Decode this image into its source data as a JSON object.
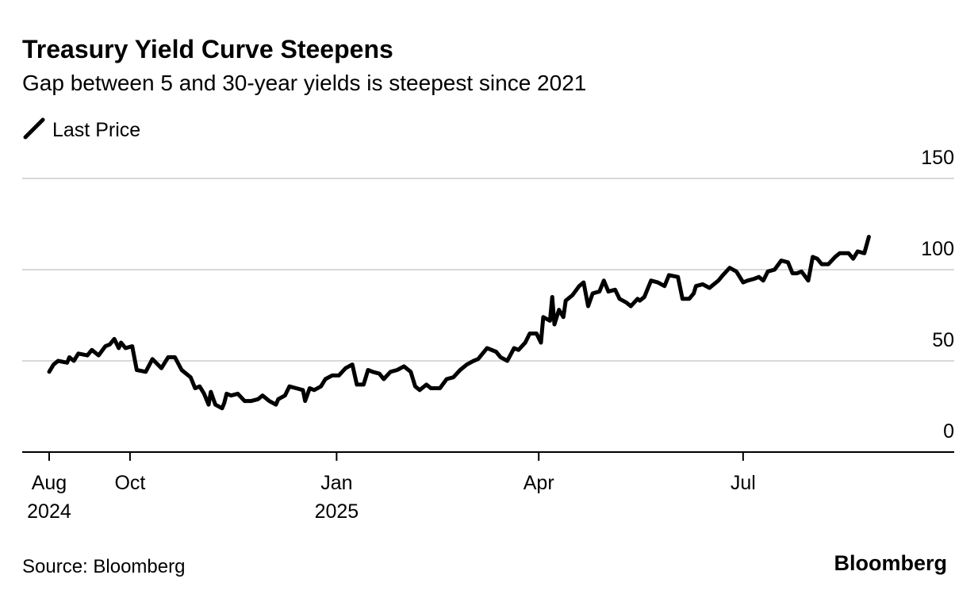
{
  "chart_data": {
    "type": "line",
    "title": "Treasury Yield Curve Steepens",
    "subtitle": "Gap between 5 and 30-year yields is steepest since 2021",
    "source": "Source: Bloomberg",
    "logo": "Bloomberg",
    "x": [
      25,
      27,
      29,
      33,
      34,
      36,
      38,
      42,
      44,
      47,
      50,
      52,
      54,
      56,
      57,
      59,
      62,
      64,
      68,
      71,
      75,
      78,
      81,
      84,
      88,
      90,
      92,
      94,
      96,
      97,
      99,
      102,
      103,
      104,
      106,
      109,
      112,
      115,
      118,
      120,
      123,
      126,
      127,
      130,
      132,
      135,
      138,
      139,
      141,
      143,
      146,
      148,
      151,
      154,
      157,
      160,
      162,
      165,
      167,
      169,
      172,
      174,
      177,
      180,
      183,
      186,
      188,
      190,
      193,
      195,
      199,
      202,
      205,
      208,
      211,
      214,
      216,
      218,
      220,
      224,
      226,
      229,
      232,
      234,
      237,
      239,
      242,
      244,
      245,
      248,
      249,
      250,
      252,
      254,
      255,
      258,
      261,
      263,
      265,
      267,
      270,
      272,
      274,
      277,
      279,
      282,
      284,
      287,
      288,
      290,
      293,
      296,
      299,
      301,
      305,
      307,
      310,
      312,
      313,
      316,
      319,
      323,
      325,
      328,
      331,
      334,
      336,
      339,
      341,
      343,
      345,
      348,
      351,
      354,
      356,
      358,
      360,
      363,
      365,
      367,
      369,
      372,
      375,
      377,
      381,
      383,
      385,
      388,
      390
    ],
    "series": [
      {
        "name": "Last Price",
        "color": "#000000",
        "values": [
          44,
          48,
          50,
          49,
          52,
          50,
          54,
          53,
          56,
          53,
          58,
          59,
          62,
          57,
          60,
          57,
          58,
          45,
          44,
          51,
          46,
          52,
          52,
          45,
          41,
          35,
          36,
          32,
          26,
          33,
          26,
          24,
          27,
          32,
          31,
          32,
          28,
          28,
          29,
          31,
          28,
          26,
          29,
          31,
          36,
          35,
          34,
          28,
          35,
          34,
          36,
          40,
          42,
          42,
          46,
          48,
          37,
          37,
          45,
          44,
          43,
          40,
          44,
          45,
          47,
          44,
          36,
          34,
          37,
          35,
          35,
          40,
          41,
          45,
          48,
          50,
          51,
          54,
          57,
          55,
          52,
          50,
          57,
          56,
          60,
          65,
          65,
          60,
          74,
          72,
          85,
          70,
          78,
          74,
          83,
          86,
          91,
          93,
          80,
          87,
          88,
          94,
          88,
          89,
          84,
          82,
          80,
          84,
          83,
          85,
          94,
          93,
          91,
          97,
          96,
          84,
          84,
          87,
          91,
          92,
          90,
          94,
          97,
          101,
          99,
          93,
          94,
          95,
          96,
          94,
          99,
          100,
          105,
          104,
          98,
          98,
          99,
          94,
          107,
          106,
          103,
          103,
          107,
          109,
          109,
          106,
          110,
          109,
          118
        ]
      }
    ],
    "xlim": [
      13,
      428
    ],
    "xticks": [
      {
        "value": 25,
        "label": "Aug\n2024"
      },
      {
        "value": 61,
        "label": "Oct"
      },
      {
        "value": 153,
        "label": "Jan\n2025"
      },
      {
        "value": 243,
        "label": "Apr"
      },
      {
        "value": 334,
        "label": "Jul"
      }
    ],
    "ylim": [
      0,
      150
    ],
    "yticks": [
      0,
      50,
      100,
      150
    ],
    "grid": true
  }
}
